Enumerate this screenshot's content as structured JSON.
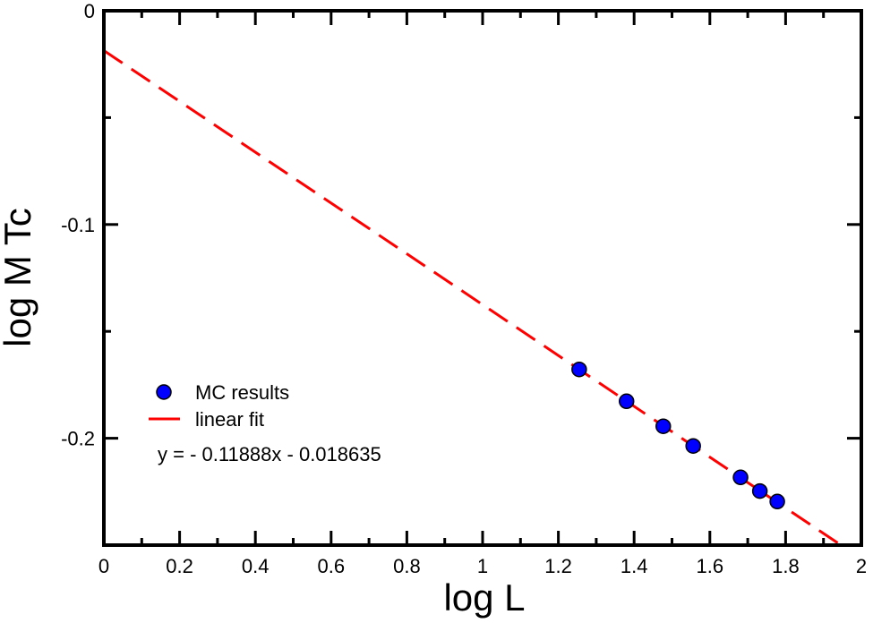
{
  "chart_data": {
    "type": "scatter",
    "xlabel": "log L",
    "ylabel": "log M Tc",
    "xlim": [
      0,
      2
    ],
    "ylim": [
      -0.25,
      0
    ],
    "x_major_ticks": [
      0,
      0.2,
      0.4,
      0.6,
      0.8,
      1,
      1.2,
      1.4,
      1.6,
      1.8,
      2
    ],
    "x_tick_labels": [
      "0",
      "0.2",
      "0.4",
      "0.6",
      "0.8",
      "1",
      "1.2",
      "1.4",
      "1.6",
      "1.8",
      "2"
    ],
    "y_major_ticks": [
      0,
      -0.1,
      -0.2
    ],
    "y_tick_labels": [
      "0",
      "-0.1",
      "-0.2"
    ],
    "x_minor_step": 0.1,
    "y_minor_step": 0.05,
    "series": [
      {
        "name": "MC results",
        "kind": "points",
        "color": "#0000ff",
        "x": [
          1.255,
          1.38,
          1.477,
          1.556,
          1.681,
          1.732,
          1.778
        ],
        "y": [
          -0.1678,
          -0.1827,
          -0.1944,
          -0.2036,
          -0.2183,
          -0.2247,
          -0.2296
        ]
      },
      {
        "name": "linear fit",
        "kind": "dashed-line",
        "color": "#ff0000",
        "slope": -0.11888,
        "intercept": -0.018635
      }
    ],
    "legend": {
      "position": "lower-left",
      "items": [
        "MC results",
        "linear fit"
      ],
      "equation": "y = - 0.11888x - 0.018635"
    }
  }
}
